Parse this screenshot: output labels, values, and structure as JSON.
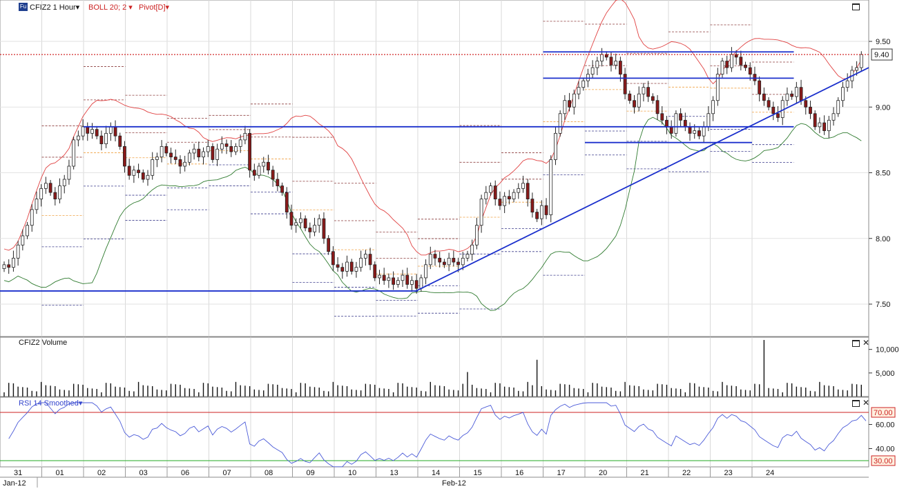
{
  "header": {
    "symbol_badge": "Fu",
    "symbol": "CFIZ2 1 Hour",
    "indicators": [
      {
        "label": "BOLL 20; 2",
        "color": "#cc2222"
      },
      {
        "label": "Pivot[D]",
        "color": "#cc2222"
      }
    ]
  },
  "volume_panel": {
    "title": "CFIZ2 Volume",
    "ticks": [
      "10,000",
      "5,000"
    ]
  },
  "rsi_panel": {
    "title": "RSI 14 Smoothed",
    "levels": [
      "70.00",
      "30.00"
    ],
    "ticks": [
      "60.00",
      "40.00"
    ]
  },
  "price_axis": {
    "ticks": [
      "9.50",
      "9.00",
      "8.50",
      "8.00",
      "7.50"
    ],
    "last_price": "9.40"
  },
  "date_axis": {
    "labels": [
      "31",
      "01",
      "02",
      "03",
      "06",
      "07",
      "08",
      "09",
      "10",
      "13",
      "14",
      "15",
      "16",
      "17",
      "20",
      "21",
      "22",
      "23",
      "24"
    ],
    "months": [
      "Jan-12",
      "Feb-12"
    ]
  },
  "colors": {
    "up": "#ffffff",
    "down": "#8b1a1a",
    "trendline": "#1a2fcc",
    "bb_mid": "#2e7a2e",
    "bb_band": "#e04040",
    "pivot_r": "#8b3a3a",
    "pivot_s": "#3a3a8b",
    "pivot_p": "#f0a040",
    "rsi": "#4a5ad8"
  },
  "chart_data": {
    "type": "candlestick",
    "instrument": "CFIZ2",
    "interval": "1 Hour",
    "session_dates": [
      "31",
      "01",
      "02",
      "03",
      "06",
      "07",
      "08",
      "09",
      "10",
      "13",
      "14",
      "15",
      "16",
      "17",
      "20",
      "21",
      "22",
      "23",
      "24"
    ],
    "ylim": [
      7.2,
      9.8
    ],
    "closes": [
      7.8,
      7.78,
      7.85,
      7.95,
      8.02,
      8.1,
      8.22,
      8.3,
      8.38,
      8.42,
      8.35,
      8.3,
      8.4,
      8.45,
      8.55,
      8.75,
      8.78,
      8.85,
      8.8,
      8.83,
      8.78,
      8.72,
      8.8,
      8.85,
      8.78,
      8.7,
      8.55,
      8.48,
      8.52,
      8.5,
      8.45,
      8.48,
      8.6,
      8.62,
      8.7,
      8.65,
      8.62,
      8.6,
      8.55,
      8.58,
      8.65,
      8.68,
      8.62,
      8.66,
      8.7,
      8.6,
      8.68,
      8.72,
      8.7,
      8.66,
      8.7,
      8.75,
      8.8,
      8.52,
      8.48,
      8.55,
      8.58,
      8.52,
      8.45,
      8.4,
      8.35,
      8.2,
      8.1,
      8.12,
      8.15,
      8.08,
      8.05,
      8.1,
      8.15,
      8.0,
      7.9,
      7.8,
      7.78,
      7.75,
      7.82,
      7.75,
      7.78,
      7.85,
      7.88,
      7.8,
      7.7,
      7.72,
      7.68,
      7.7,
      7.65,
      7.68,
      7.72,
      7.65,
      7.68,
      7.62,
      7.7,
      7.8,
      7.88,
      7.85,
      7.82,
      7.8,
      7.85,
      7.82,
      7.8,
      7.85,
      7.88,
      7.95,
      8.1,
      8.3,
      8.35,
      8.4,
      8.3,
      8.25,
      8.32,
      8.3,
      8.35,
      8.38,
      8.42,
      8.3,
      8.2,
      8.15,
      8.25,
      8.18,
      8.6,
      8.8,
      8.95,
      9.05,
      9.0,
      9.1,
      9.15,
      9.2,
      9.25,
      9.3,
      9.35,
      9.4,
      9.38,
      9.32,
      9.35,
      9.25,
      9.1,
      9.05,
      9.0,
      9.1,
      9.15,
      9.08,
      9.05,
      8.95,
      8.9,
      8.85,
      8.8,
      8.95,
      8.9,
      8.85,
      8.8,
      8.82,
      8.78,
      8.85,
      8.95,
      9.05,
      9.25,
      9.35,
      9.3,
      9.4,
      9.38,
      9.32,
      9.3,
      9.25,
      9.2,
      9.1,
      9.05,
      9.0,
      8.95,
      8.92,
      9.05,
      9.1,
      9.08,
      9.15,
      9.05,
      9.0,
      8.95,
      8.85,
      8.88,
      8.82,
      8.9,
      8.95,
      9.05,
      9.15,
      9.2,
      9.28,
      9.3,
      9.4
    ],
    "bollinger": {
      "period": 20,
      "deviations": 2
    },
    "pivot": "Daily",
    "trendlines": [
      {
        "from": [
          "31",
          7.6
        ],
        "to": [
          "13",
          7.6
        ]
      },
      {
        "from": [
          "13",
          7.6
        ],
        "to": [
          "24",
          9.3
        ]
      },
      {
        "from": [
          "02",
          8.85
        ],
        "to": [
          "24",
          8.85
        ]
      },
      {
        "from": [
          "17",
          9.42
        ],
        "to": [
          "24",
          9.42
        ]
      },
      {
        "from": [
          "17",
          9.22
        ],
        "to": [
          "24",
          9.22
        ]
      },
      {
        "from": [
          "20",
          8.73
        ],
        "to": [
          "23",
          8.73
        ]
      }
    ],
    "last_price": 9.4,
    "volume": {
      "title": "CFIZ2 Volume",
      "max_value": 12000,
      "peak_values": [
        12000,
        7800,
        5200
      ]
    },
    "rsi": {
      "period": 14,
      "overbought": 70,
      "oversold": 30,
      "last_value": 63
    }
  }
}
